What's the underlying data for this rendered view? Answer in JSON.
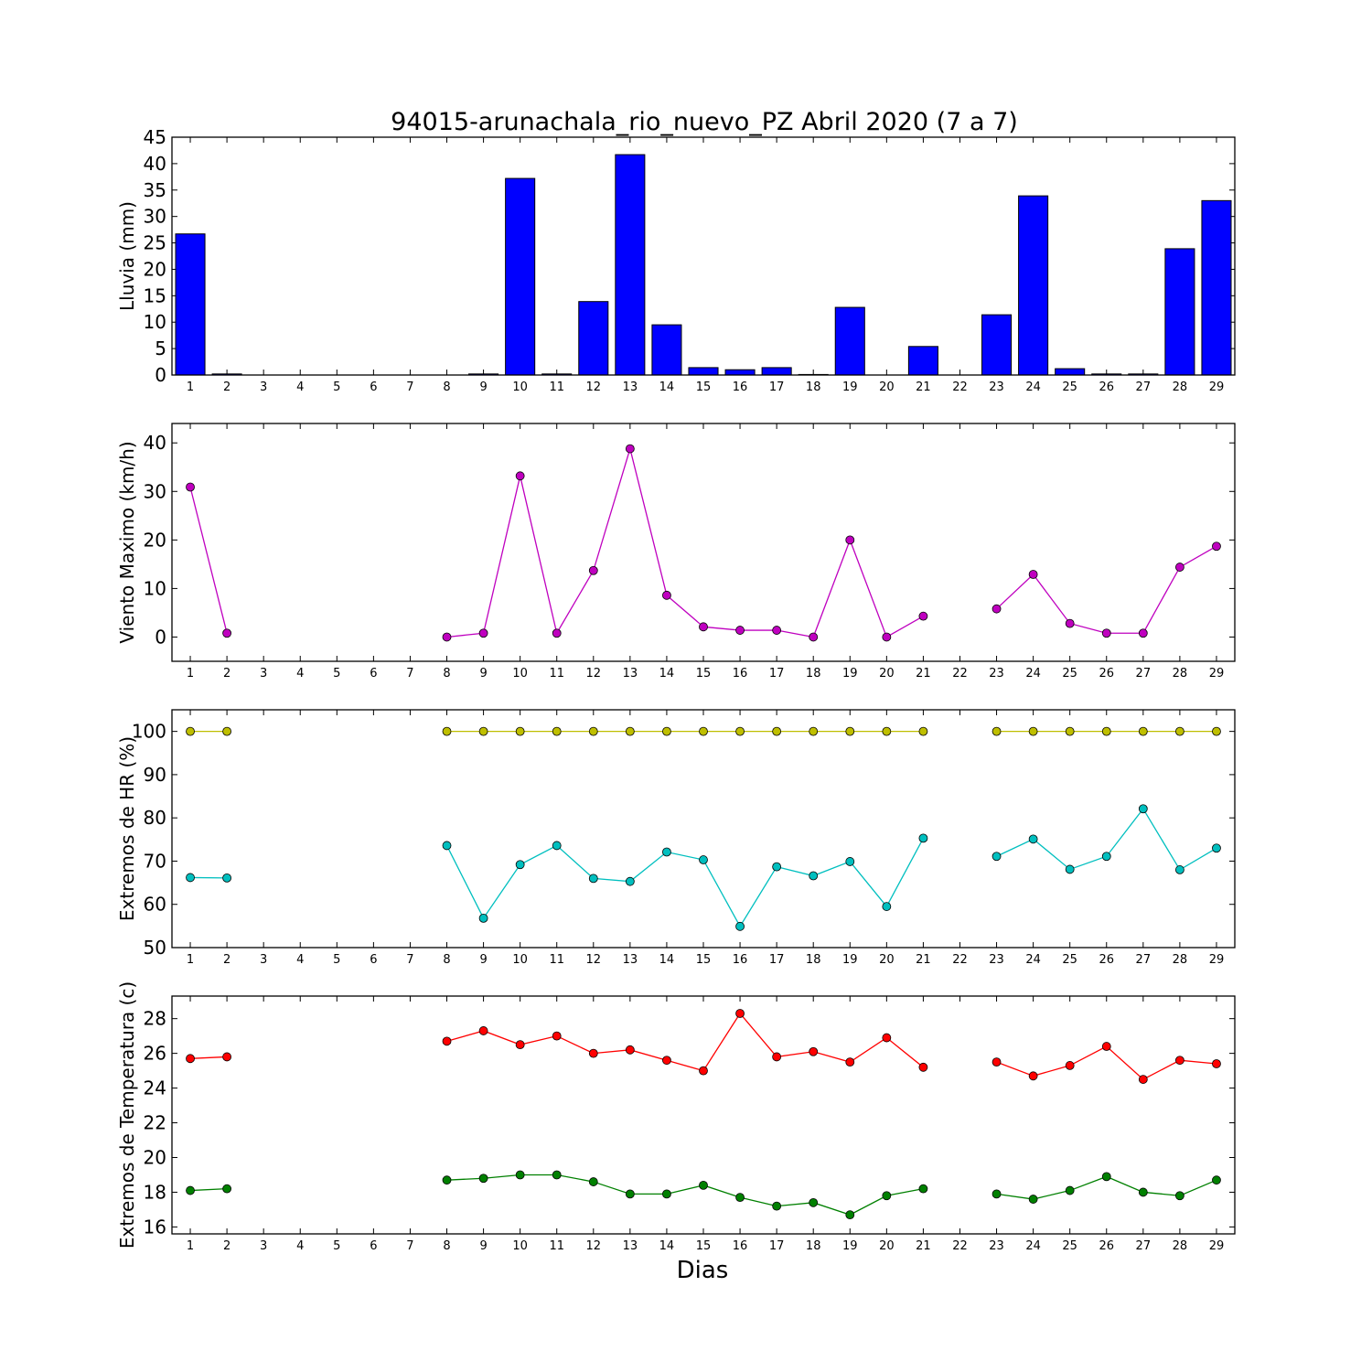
{
  "chart_data": [
    {
      "type": "bar",
      "title": "94015-arunachala_rio_nuevo_PZ Abril 2020  (7 a 7)",
      "xlabel": "",
      "ylabel": "Lluvia (mm)",
      "ylim": [
        0,
        45
      ],
      "yticks": [
        0,
        5,
        10,
        15,
        20,
        25,
        30,
        35,
        40,
        45
      ],
      "categories": [
        "1",
        "2",
        "3",
        "4",
        "5",
        "6",
        "7",
        "8",
        "9",
        "10",
        "11",
        "12",
        "13",
        "14",
        "15",
        "16",
        "17",
        "18",
        "19",
        "20",
        "21",
        "22",
        "23",
        "24",
        "25",
        "26",
        "27",
        "28",
        "29"
      ],
      "series": [
        {
          "values": [
            26.7,
            0.2,
            0,
            0,
            0,
            0,
            0,
            0,
            0.2,
            37.2,
            0.2,
            13.9,
            41.7,
            9.5,
            1.4,
            1.0,
            1.4,
            0.1,
            12.8,
            0,
            5.4,
            null,
            11.4,
            33.9,
            1.2,
            0.2,
            0.2,
            23.9,
            33.0
          ],
          "color": "#0000ff"
        }
      ]
    },
    {
      "type": "line",
      "xlabel": "",
      "ylabel": "Viento Maximo (km/h)",
      "ylim": [
        -5,
        44
      ],
      "yticks": [
        0,
        10,
        20,
        30,
        40
      ],
      "categories": [
        "1",
        "2",
        "3",
        "4",
        "5",
        "6",
        "7",
        "8",
        "9",
        "10",
        "11",
        "12",
        "13",
        "14",
        "15",
        "16",
        "17",
        "18",
        "19",
        "20",
        "21",
        "22",
        "23",
        "24",
        "25",
        "26",
        "27",
        "28",
        "29"
      ],
      "series": [
        {
          "values": [
            30.9,
            0.8,
            null,
            null,
            null,
            null,
            null,
            0.0,
            0.8,
            33.2,
            0.8,
            13.7,
            38.8,
            8.6,
            2.1,
            1.4,
            1.4,
            0.0,
            20.0,
            0.0,
            4.3,
            null,
            5.8,
            12.9,
            2.8,
            0.8,
            0.8,
            14.4,
            18.7
          ],
          "color": "#bf00bf"
        }
      ]
    },
    {
      "type": "line",
      "xlabel": "",
      "ylabel": "Extremos de HR (%)",
      "ylim": [
        50,
        105
      ],
      "yticks": [
        50,
        60,
        70,
        80,
        90,
        100
      ],
      "categories": [
        "1",
        "2",
        "3",
        "4",
        "5",
        "6",
        "7",
        "8",
        "9",
        "10",
        "11",
        "12",
        "13",
        "14",
        "15",
        "16",
        "17",
        "18",
        "19",
        "20",
        "21",
        "22",
        "23",
        "24",
        "25",
        "26",
        "27",
        "28",
        "29"
      ],
      "series": [
        {
          "values": [
            100,
            100,
            null,
            null,
            null,
            null,
            null,
            100,
            100,
            100,
            100,
            100,
            100,
            100,
            100,
            100,
            100,
            100,
            100,
            100,
            100,
            null,
            100,
            100,
            100,
            100,
            100,
            100,
            100
          ],
          "color": "#bfbf00"
        },
        {
          "values": [
            66.2,
            66.1,
            null,
            null,
            null,
            null,
            null,
            73.6,
            56.8,
            69.2,
            73.6,
            66.0,
            65.3,
            72.1,
            70.3,
            54.9,
            68.7,
            66.6,
            69.9,
            59.5,
            75.3,
            null,
            71.1,
            75.1,
            68.1,
            71.1,
            82.1,
            68.0,
            73.0
          ],
          "color": "#00bfbf"
        }
      ]
    },
    {
      "type": "line",
      "xlabel": "Dias",
      "ylabel": "Extremos de Temperatura (c)",
      "ylim": [
        15.6,
        29.3
      ],
      "yticks": [
        16,
        18,
        20,
        22,
        24,
        26,
        28
      ],
      "categories": [
        "1",
        "2",
        "3",
        "4",
        "5",
        "6",
        "7",
        "8",
        "9",
        "10",
        "11",
        "12",
        "13",
        "14",
        "15",
        "16",
        "17",
        "18",
        "19",
        "20",
        "21",
        "22",
        "23",
        "24",
        "25",
        "26",
        "27",
        "28",
        "29"
      ],
      "series": [
        {
          "values": [
            25.7,
            25.8,
            null,
            null,
            null,
            null,
            null,
            26.7,
            27.3,
            26.5,
            27.0,
            26.0,
            26.2,
            25.6,
            25.0,
            28.3,
            25.8,
            26.1,
            25.5,
            26.9,
            25.2,
            null,
            25.5,
            24.7,
            25.3,
            26.4,
            24.5,
            25.6,
            25.4
          ],
          "color": "#ff0000"
        },
        {
          "values": [
            18.1,
            18.2,
            null,
            null,
            null,
            null,
            null,
            18.7,
            18.8,
            19.0,
            19.0,
            18.6,
            17.9,
            17.9,
            18.4,
            17.7,
            17.2,
            17.4,
            16.7,
            17.8,
            18.2,
            null,
            17.9,
            17.6,
            18.1,
            18.9,
            18.0,
            17.8,
            18.7
          ],
          "color": "#008000"
        }
      ]
    }
  ]
}
